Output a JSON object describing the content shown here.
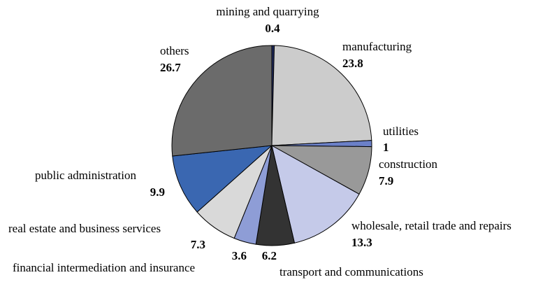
{
  "chart_data": {
    "type": "pie",
    "categories": [
      "mining and quarrying",
      "manufacturing",
      "utilities",
      "construction",
      "wholesale, retail trade and repairs",
      "transport and communications",
      "financial intermediation and insurance",
      "real estate and business services",
      "public administration",
      "others"
    ],
    "values": [
      0.4,
      23.8,
      1,
      7.9,
      13.3,
      6.2,
      3.6,
      7.3,
      9.9,
      26.7
    ],
    "colors": [
      "#1f2a5e",
      "#cccccc",
      "#6b80c8",
      "#999999",
      "#c5cae9",
      "#333333",
      "#8e9dd6",
      "#d9d9d9",
      "#3a67b1",
      "#6b6b6b"
    ]
  }
}
